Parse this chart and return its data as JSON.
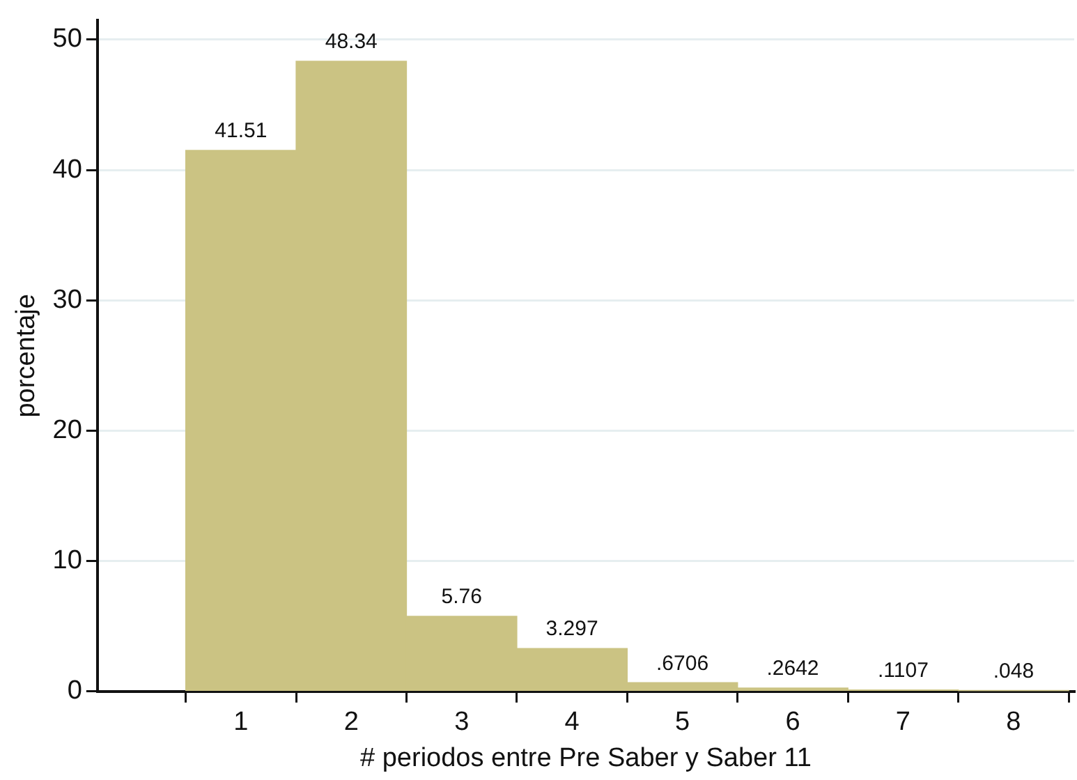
{
  "chart_data": {
    "type": "histogram",
    "xlabel": "# periodos entre Pre Saber y Saber 11",
    "ylabel": "porcentaje",
    "bins": [
      0.5,
      1.5,
      2.5,
      3.5,
      4.5,
      5.5,
      6.5,
      7.5,
      8.5
    ],
    "values": [
      41.51,
      48.34,
      5.76,
      3.297,
      0.6706,
      0.2642,
      0.1107,
      0.048
    ],
    "value_labels": [
      "41.51",
      "48.34",
      "5.76",
      "3.297",
      ".6706",
      ".2642",
      ".1107",
      ".048"
    ],
    "color": "#cbc383",
    "xlim": [
      -0.3,
      8.55
    ],
    "xticks": [
      1,
      2,
      3,
      4,
      5,
      6,
      7,
      8
    ],
    "ylim": [
      0,
      51.5
    ],
    "yticks": [
      0,
      10,
      20,
      30,
      40,
      50
    ],
    "grid": "y",
    "legend": false
  }
}
